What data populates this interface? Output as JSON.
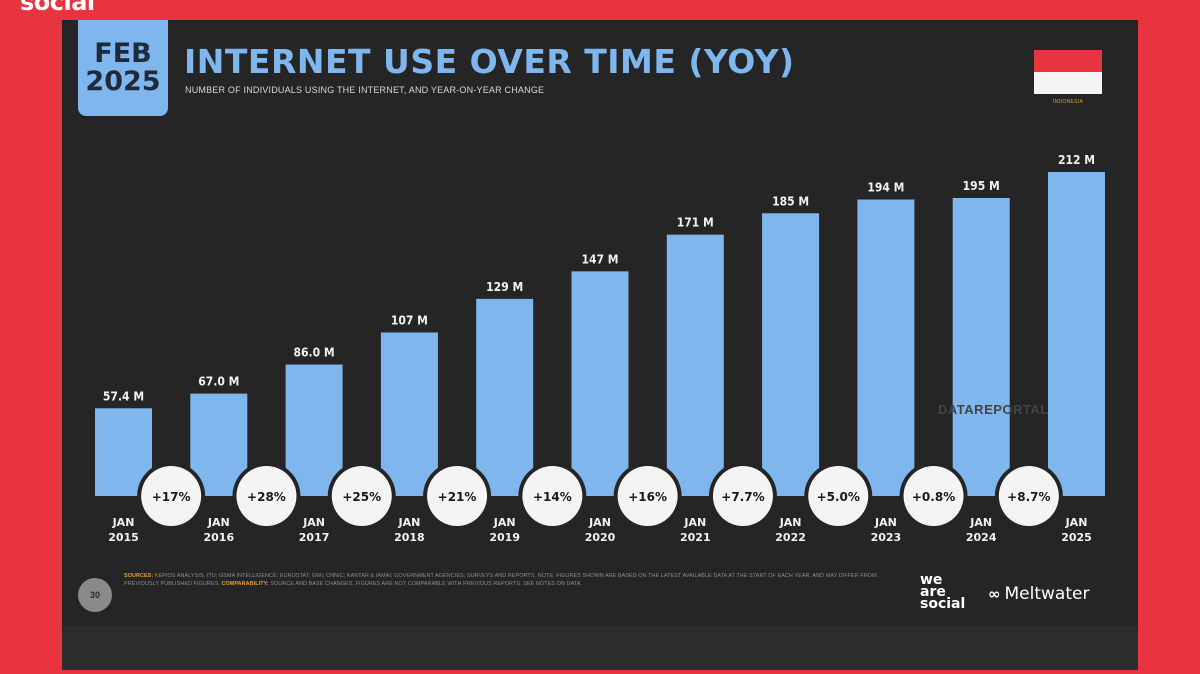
{
  "brand_top": "social",
  "badge": {
    "month": "FEB",
    "year": "2025"
  },
  "title": "INTERNET USE OVER TIME (YOY)",
  "subtitle": "NUMBER OF INDIVIDUALS USING THE INTERNET, AND YEAR-ON-YEAR CHANGE",
  "flag_caption": "INDONESIA",
  "page_number": "30",
  "watermark": "DATAREPORTAL",
  "sources": {
    "label": "SOURCES:",
    "text": "KEPIOS ANALYSIS; ITU; GSMA INTELLIGENCE; EUROSTAT; GWI; CNNIC; KANTAR & IAMAI; GOVERNMENT AGENCIES; SURVEYS AND REPORTS. NOTE: FIGURES SHOWN ARE BASED ON THE LATEST AVAILABLE DATA AT THE START OF EACH YEAR, AND MAY DIFFER FROM PREVIOUSLY PUBLISHED FIGURES.",
    "comparability_label": "COMPARABILITY:",
    "comparability_text": "SOURCE AND BASE CHANGES. FIGURES ARE NOT COMPARABLE WITH PREVIOUS REPORTS. SEE NOTES ON DATA."
  },
  "brands": {
    "we_are_social": [
      "we",
      "are",
      "social"
    ],
    "meltwater": "Meltwater",
    "meltwater_icon": "meltwater-logo-icon"
  },
  "colors": {
    "background": "#e8343f",
    "slide": "#252525",
    "bar": "#7fb6ee",
    "accent_title": "#7fb6ee",
    "badge_bg": "#ffffff"
  },
  "chart_data": {
    "type": "bar",
    "title": "INTERNET USE OVER TIME (YOY)",
    "categories": [
      [
        "JAN",
        "2015"
      ],
      [
        "JAN",
        "2016"
      ],
      [
        "JAN",
        "2017"
      ],
      [
        "JAN",
        "2018"
      ],
      [
        "JAN",
        "2019"
      ],
      [
        "JAN",
        "2020"
      ],
      [
        "JAN",
        "2021"
      ],
      [
        "JAN",
        "2022"
      ],
      [
        "JAN",
        "2023"
      ],
      [
        "JAN",
        "2024"
      ],
      [
        "JAN",
        "2025"
      ]
    ],
    "values": [
      57.4,
      67.0,
      86.0,
      107,
      129,
      147,
      171,
      185,
      194,
      195,
      212
    ],
    "value_labels": [
      "57.4 M",
      "67.0 M",
      "86.0 M",
      "107 M",
      "129 M",
      "147 M",
      "171 M",
      "185 M",
      "194 M",
      "195 M",
      "212 M"
    ],
    "changes": [
      "+17%",
      "+28%",
      "+25%",
      "+21%",
      "+14%",
      "+16%",
      "+7.7%",
      "+5.0%",
      "+0.8%",
      "+8.7%"
    ],
    "ylim": [
      0,
      225
    ],
    "grid": false,
    "legend": "none"
  }
}
